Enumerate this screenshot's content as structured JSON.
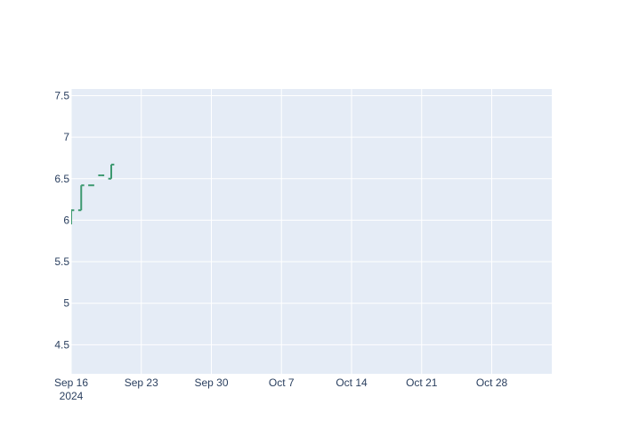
{
  "chart_data": {
    "type": "ohlc",
    "title": "",
    "xlabel": "",
    "ylabel": "",
    "x_axis": {
      "type": "date",
      "range": [
        "2024-09-16",
        "2024-11-03"
      ],
      "ticks": [
        {
          "date": "2024-09-16",
          "label": "Sep 16",
          "sublabel": "2024"
        },
        {
          "date": "2024-09-23",
          "label": "Sep 23"
        },
        {
          "date": "2024-09-30",
          "label": "Sep 30"
        },
        {
          "date": "2024-10-07",
          "label": "Oct 7"
        },
        {
          "date": "2024-10-14",
          "label": "Oct 14"
        },
        {
          "date": "2024-10-21",
          "label": "Oct 21"
        },
        {
          "date": "2024-10-28",
          "label": "Oct 28"
        }
      ]
    },
    "y_axis": {
      "range": [
        4.15,
        7.58
      ],
      "ticks": [
        {
          "value": 4.5,
          "label": "4.5"
        },
        {
          "value": 5,
          "label": "5"
        },
        {
          "value": 5.5,
          "label": "5.5"
        },
        {
          "value": 6,
          "label": "6"
        },
        {
          "value": 6.5,
          "label": "6.5"
        },
        {
          "value": 7,
          "label": "7"
        },
        {
          "value": 7.5,
          "label": "7.5"
        }
      ]
    },
    "grid": true,
    "legend": "none",
    "colors": {
      "background": "#e5ecf6",
      "grid": "#ffffff",
      "increasing": "#3d9970",
      "tick_text": "#2a3f5f"
    },
    "series": [
      {
        "points": [
          {
            "date": "2024-09-16",
            "open": 5.95,
            "high": 6.12,
            "low": 5.95,
            "close": 6.12
          },
          {
            "date": "2024-09-17",
            "open": 6.12,
            "high": 6.42,
            "low": 6.12,
            "close": 6.42
          },
          {
            "date": "2024-09-18",
            "open": 6.42,
            "high": 6.42,
            "low": 6.42,
            "close": 6.42
          },
          {
            "date": "2024-09-19",
            "open": 6.54,
            "high": 6.54,
            "low": 6.54,
            "close": 6.54
          },
          {
            "date": "2024-09-20",
            "open": 6.5,
            "high": 6.67,
            "low": 6.5,
            "close": 6.67
          }
        ]
      }
    ]
  }
}
